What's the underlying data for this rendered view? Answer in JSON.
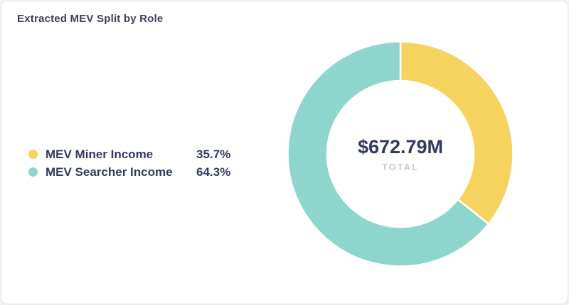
{
  "card": {
    "title": "Extracted MEV Split by Role"
  },
  "chart_data": {
    "type": "pie",
    "variant": "donut",
    "title": "Extracted MEV Split by Role",
    "legend_position": "left",
    "series": [
      {
        "label": "MEV Miner Income",
        "value": 35.7,
        "display": "35.7%",
        "color": "#F6D25E"
      },
      {
        "label": "MEV Searcher Income",
        "value": 64.3,
        "display": "64.3%",
        "color": "#8ED5CE"
      }
    ],
    "start_angle_deg": 0,
    "direction": "clockwise",
    "center": {
      "value": "$672.79M",
      "label": "TOTAL"
    }
  }
}
